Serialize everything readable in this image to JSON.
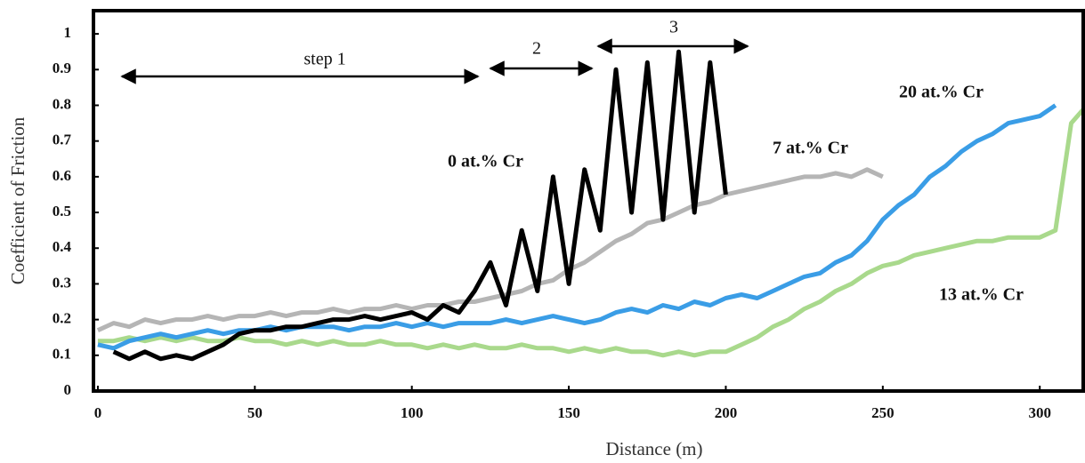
{
  "chart_data": {
    "type": "line",
    "xlabel": "Distance (m)",
    "ylabel": "Coefficient of Friction",
    "annotations": [
      "step 1",
      "2",
      "3"
    ],
    "xlim": [
      -1.4,
      314.4
    ],
    "ylim": [
      0,
      1.065
    ],
    "xticks": [
      0,
      50,
      100,
      150,
      200,
      250,
      300
    ],
    "yticks": [
      0,
      0.1,
      0.2,
      0.3,
      0.4,
      0.5,
      0.6,
      0.7,
      0.8,
      0.9,
      1
    ],
    "x": [
      0,
      5,
      10,
      15,
      20,
      25,
      30,
      35,
      40,
      45,
      50,
      55,
      60,
      65,
      70,
      75,
      80,
      85,
      90,
      95,
      100,
      105,
      110,
      115,
      120,
      125,
      130,
      135,
      140,
      145,
      150,
      155,
      160,
      165,
      170,
      175,
      180,
      185,
      190,
      195,
      200,
      205,
      210,
      215,
      220,
      225,
      230,
      235,
      240,
      245,
      250,
      255,
      260,
      265,
      270,
      275,
      280,
      285,
      290,
      295,
      300,
      305,
      310,
      315
    ],
    "series": [
      {
        "name": "13 at.% Cr",
        "color": "#a9d98c",
        "values": [
          0.14,
          0.14,
          0.15,
          0.14,
          0.15,
          0.14,
          0.15,
          0.14,
          0.14,
          0.15,
          0.14,
          0.14,
          0.13,
          0.14,
          0.13,
          0.14,
          0.13,
          0.13,
          0.14,
          0.13,
          0.13,
          0.12,
          0.13,
          0.12,
          0.13,
          0.12,
          0.12,
          0.13,
          0.12,
          0.12,
          0.11,
          0.12,
          0.11,
          0.12,
          0.11,
          0.11,
          0.1,
          0.11,
          0.1,
          0.11,
          0.11,
          0.13,
          0.15,
          0.18,
          0.2,
          0.23,
          0.25,
          0.28,
          0.3,
          0.33,
          0.35,
          0.36,
          0.38,
          0.39,
          0.4,
          0.41,
          0.42,
          0.42,
          0.43,
          0.43,
          0.43,
          0.45,
          0.75,
          0.8
        ]
      },
      {
        "name": "7 at.% Cr",
        "color": "#b5b5b5",
        "values": [
          0.17,
          0.19,
          0.18,
          0.2,
          0.19,
          0.2,
          0.2,
          0.21,
          0.2,
          0.21,
          0.21,
          0.22,
          0.21,
          0.22,
          0.22,
          0.23,
          0.22,
          0.23,
          0.23,
          0.24,
          0.23,
          0.24,
          0.24,
          0.25,
          0.25,
          0.26,
          0.27,
          0.28,
          0.3,
          0.31,
          0.34,
          0.36,
          0.39,
          0.42,
          0.44,
          0.47,
          0.48,
          0.5,
          0.52,
          0.53,
          0.55,
          0.56,
          0.57,
          0.58,
          0.59,
          0.6,
          0.6,
          0.61,
          0.6,
          0.62,
          0.6,
          null,
          null,
          null,
          null,
          null,
          null,
          null,
          null,
          null,
          null,
          null,
          null,
          null
        ]
      },
      {
        "name": "20 at.% Cr",
        "color": "#3a9de6",
        "values": [
          0.13,
          0.12,
          0.14,
          0.15,
          0.16,
          0.15,
          0.16,
          0.17,
          0.16,
          0.17,
          0.17,
          0.18,
          0.17,
          0.18,
          0.18,
          0.18,
          0.17,
          0.18,
          0.18,
          0.19,
          0.18,
          0.19,
          0.18,
          0.19,
          0.19,
          0.19,
          0.2,
          0.19,
          0.2,
          0.21,
          0.2,
          0.19,
          0.2,
          0.22,
          0.23,
          0.22,
          0.24,
          0.23,
          0.25,
          0.24,
          0.26,
          0.27,
          0.26,
          0.28,
          0.3,
          0.32,
          0.33,
          0.36,
          0.38,
          0.42,
          0.48,
          0.52,
          0.55,
          0.6,
          0.63,
          0.67,
          0.7,
          0.72,
          0.75,
          0.76,
          0.77,
          0.8,
          null,
          null
        ]
      },
      {
        "name": "0 at.% Cr",
        "color": "#000000",
        "values": [
          null,
          0.11,
          0.09,
          0.11,
          0.09,
          0.1,
          0.09,
          0.11,
          0.13,
          0.16,
          0.17,
          0.17,
          0.18,
          0.18,
          0.19,
          0.2,
          0.2,
          0.21,
          0.2,
          0.21,
          0.22,
          0.2,
          0.24,
          0.22,
          0.28,
          0.36,
          0.24,
          0.45,
          0.28,
          0.6,
          0.3,
          0.62,
          0.45,
          0.9,
          0.5,
          0.92,
          0.48,
          0.95,
          0.5,
          0.92,
          0.55,
          null,
          null,
          null,
          null,
          null,
          null,
          null,
          null,
          null,
          null,
          null,
          null,
          null,
          null,
          null,
          null,
          null,
          null,
          null,
          null,
          null,
          null,
          null
        ]
      }
    ]
  }
}
